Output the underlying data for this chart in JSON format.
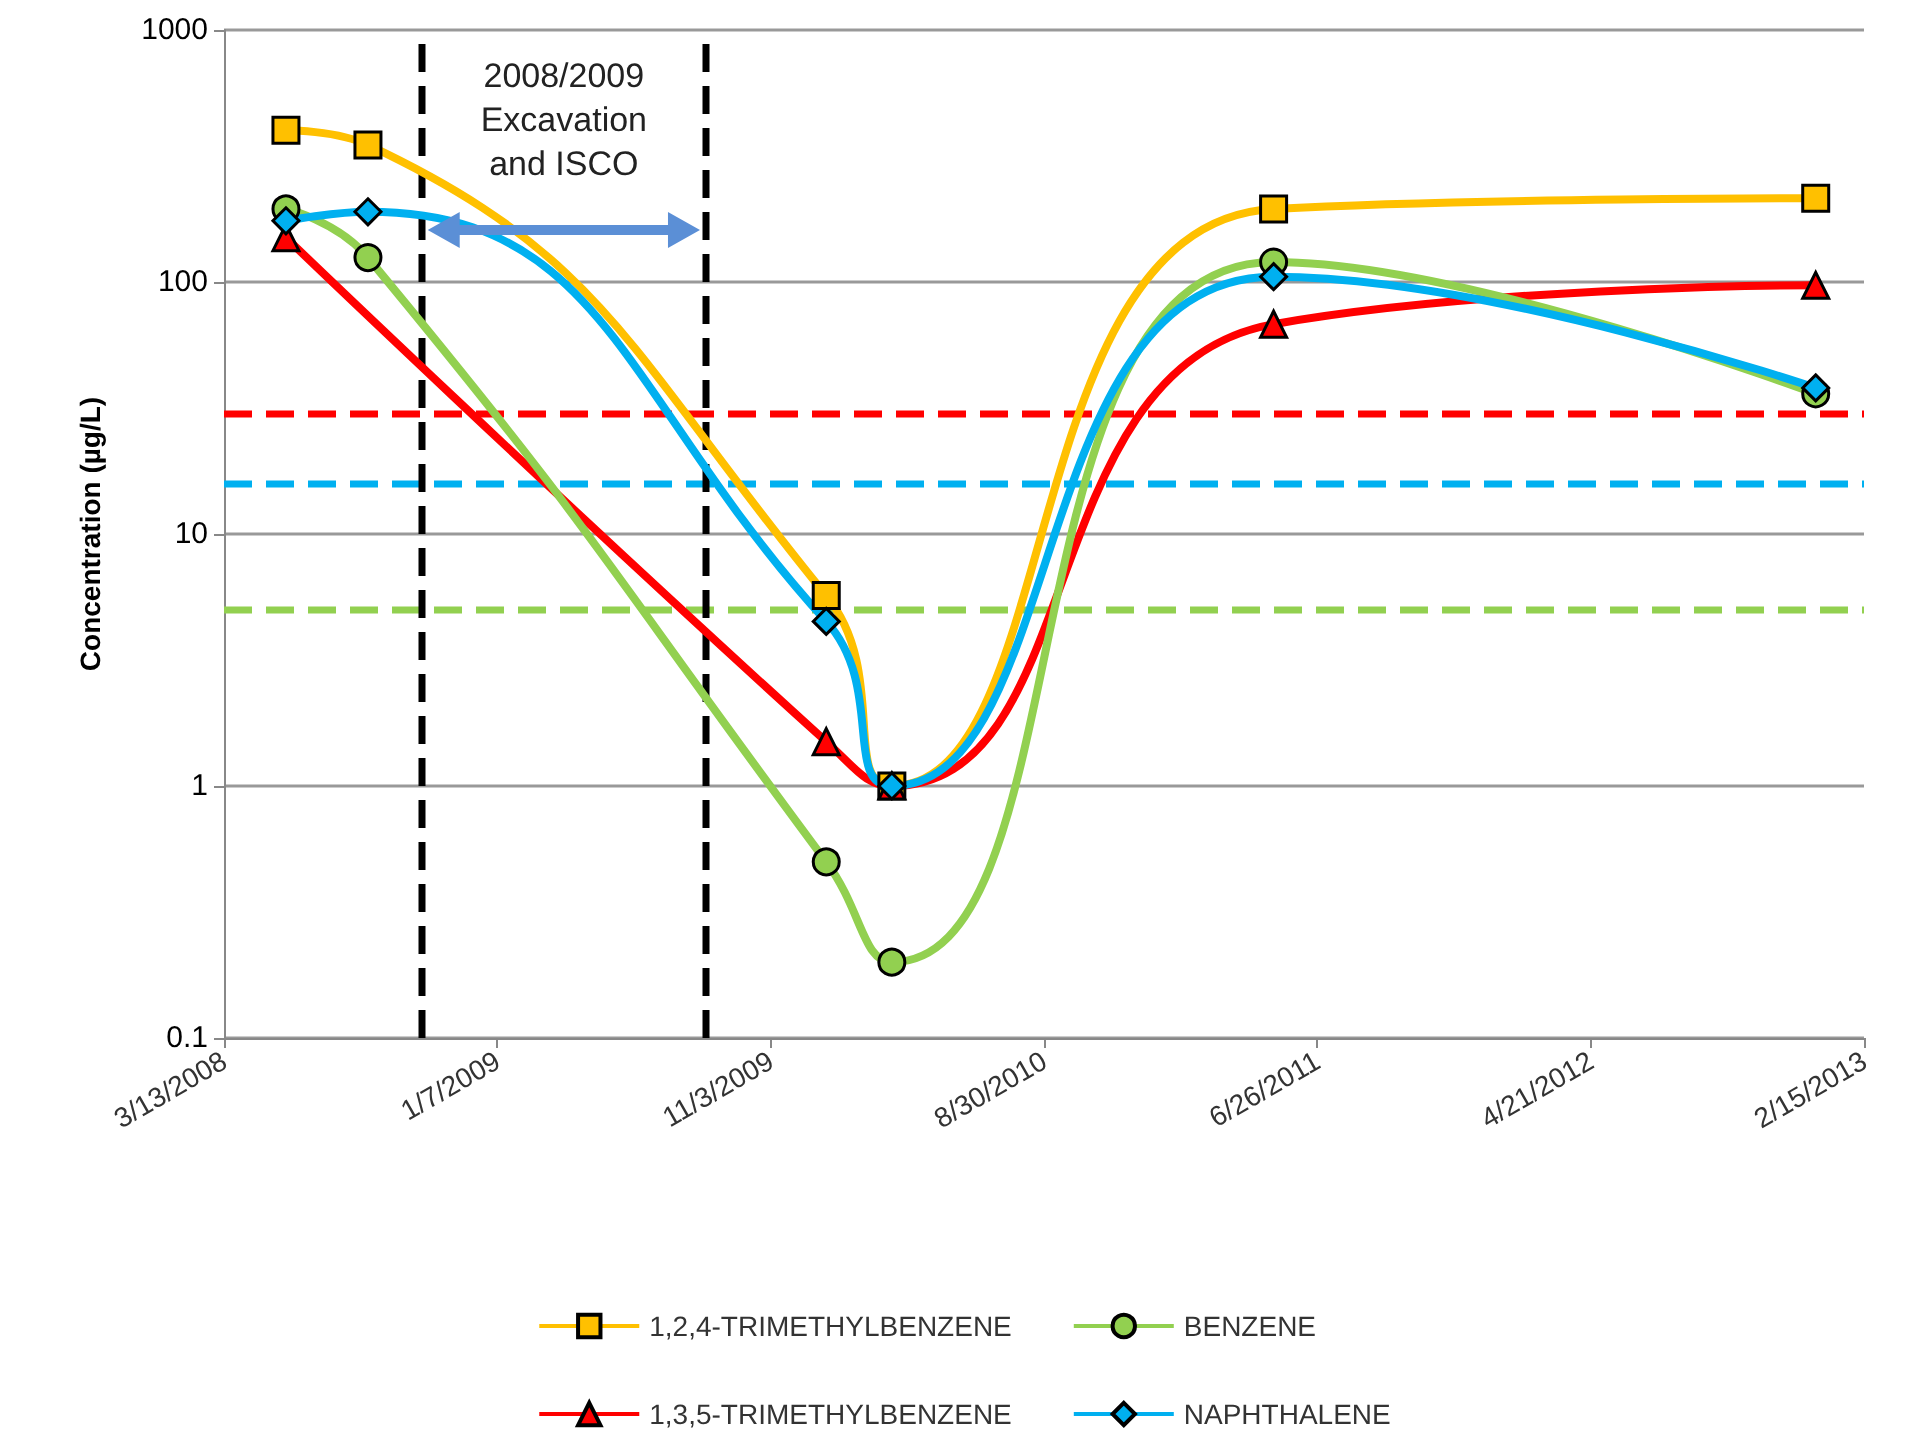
{
  "chart_data": {
    "type": "line",
    "ylabel": "Concentration (µg/L)",
    "x": [
      "2008-05-20",
      "2008-08-18",
      "2010-01-03",
      "2010-03-16",
      "2011-05-09",
      "2012-12-24"
    ],
    "series": [
      {
        "name": "1,2,4-TRIMETHYLBENZENE",
        "color": "#ffc000",
        "marker": "square",
        "values": [
          400,
          350,
          5.7,
          1.0,
          195,
          215
        ]
      },
      {
        "name": "1,3,5-TRIMETHYLBENZENE",
        "color": "#ff0000",
        "marker": "triangle",
        "x": [
          "2008-05-20",
          "2010-01-03",
          "2010-03-16",
          "2011-05-09",
          "2012-12-24"
        ],
        "values": [
          150,
          1.5,
          1.0,
          68,
          97
        ]
      },
      {
        "name": "BENZENE",
        "color": "#92d050",
        "marker": "circle",
        "values": [
          195,
          125,
          0.5,
          0.2,
          120,
          36
        ]
      },
      {
        "name": "NAPHTHALENE",
        "color": "#00b0f0",
        "marker": "diamond",
        "values": [
          175,
          190,
          4.5,
          1.0,
          105,
          38
        ]
      }
    ],
    "xlim": [
      "2008-03-13",
      "2013-02-15"
    ],
    "xticks": [
      {
        "value": "2008-03-13",
        "label": "3/13/2008"
      },
      {
        "value": "2009-01-07",
        "label": "1/7/2009"
      },
      {
        "value": "2009-11-03",
        "label": "11/3/2009"
      },
      {
        "value": "2010-08-30",
        "label": "8/30/2010"
      },
      {
        "value": "2011-06-26",
        "label": "6/26/2011"
      },
      {
        "value": "2012-04-21",
        "label": "4/21/2012"
      },
      {
        "value": "2013-02-15",
        "label": "2/15/2013"
      }
    ],
    "ylim": [
      0.1,
      1000
    ],
    "yticks": [
      0.1,
      1,
      10,
      100,
      1000
    ],
    "log": "y",
    "grid": "y",
    "legend": "bottom",
    "line_style": "solid",
    "ref_lines": [
      {
        "axis": "y",
        "value": 30,
        "color": "#ff0000",
        "line_style": "dashed"
      },
      {
        "axis": "y",
        "value": 16,
        "color": "#00b0f0",
        "line_style": "dashed"
      },
      {
        "axis": "y",
        "value": 5,
        "color": "#92d050",
        "line_style": "dashed"
      },
      {
        "axis": "x",
        "value": "2008-10-16",
        "color": "#000000",
        "line_style": "dashed"
      },
      {
        "axis": "x",
        "value": "2009-08-24",
        "color": "#000000",
        "line_style": "dashed"
      }
    ],
    "annotations": [
      "2008/2009\nExcavation\nand ISCO"
    ]
  }
}
